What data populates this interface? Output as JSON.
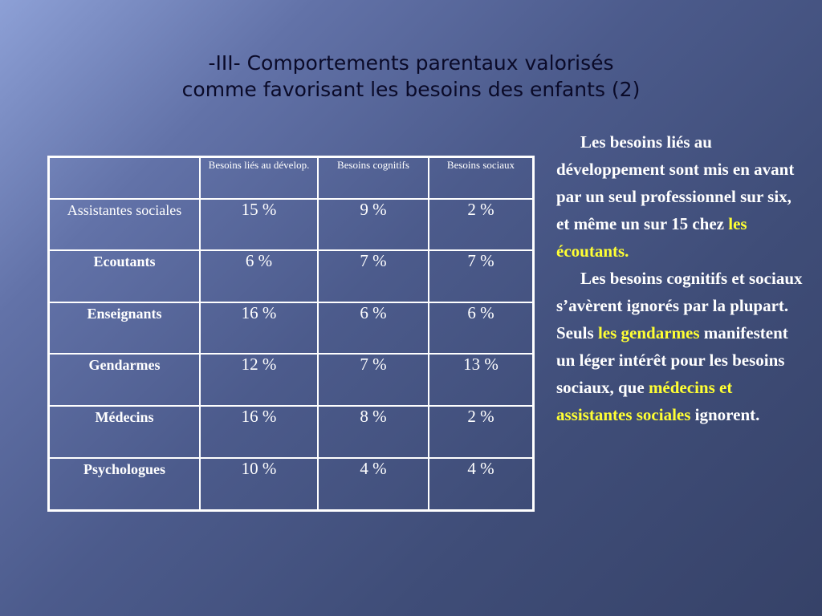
{
  "title": {
    "line1": "-III- Comportements parentaux valorisés",
    "line2": "comme favorisant les besoins des enfants (2)"
  },
  "table": {
    "headers": [
      "",
      "Besoins liés au dévelop.",
      "Besoins cognitifs",
      "Besoins sociaux"
    ],
    "rows": [
      {
        "label": "Assistantes sociales",
        "values": [
          "15 %",
          "9 %",
          "2 %"
        ]
      },
      {
        "label": "Ecoutants",
        "values": [
          "6 %",
          "7 %",
          "7 %"
        ]
      },
      {
        "label": "Enseignants",
        "values": [
          "16 %",
          "6 %",
          "6 %"
        ]
      },
      {
        "label": "Gendarmes",
        "values": [
          "12 %",
          "7 %",
          "13 %"
        ]
      },
      {
        "label": "Médecins",
        "values": [
          "16 %",
          "8 %",
          "2 %"
        ]
      },
      {
        "label": "Psychologues",
        "values": [
          "10 %",
          "4 %",
          "4 %"
        ]
      }
    ]
  },
  "side_text": {
    "p1_plain": "Les besoins liés au développement sont mis en avant par un seul professionnel sur six, et même un sur 15 chez ",
    "p1_highlight": "les écoutants.",
    "p2_plain1": "Les besoins cognitifs et sociaux s’avèrent ignorés par la plupart. Seuls ",
    "p2_highlight1": "les gendarmes",
    "p2_plain2": " manifestent un léger intérêt pour les besoins sociaux, que ",
    "p2_highlight2": "médecins et assistantes sociales",
    "p2_plain3": " ignorent."
  },
  "colors": {
    "highlight_yellow": "#ffff33",
    "highlight_magenta": "#ff44cc",
    "highlight_cyan": "#22d8f0",
    "title_text": "#0a0a28"
  }
}
